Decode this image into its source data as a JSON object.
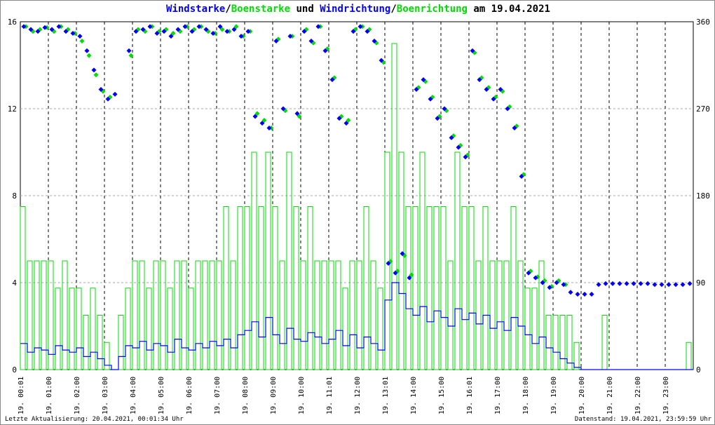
{
  "chart_data": {
    "type": "bar",
    "title_parts": [
      {
        "text": "Windstarke",
        "color": "#0000ff"
      },
      {
        "text": "/",
        "color": "#000000"
      },
      {
        "text": "Boenstarke",
        "color": "#00dd00"
      },
      {
        "text": " und ",
        "color": "#000000"
      },
      {
        "text": "Windrichtung",
        "color": "#0000ff"
      },
      {
        "text": "/",
        "color": "#000000"
      },
      {
        "text": "Boenrichtung",
        "color": "#00dd00"
      },
      {
        "text": " am 19.04.2021",
        "color": "#000000"
      }
    ],
    "y_left": {
      "range": [
        0,
        16
      ],
      "ticks": [
        "0",
        "4",
        "8",
        "12",
        "16"
      ]
    },
    "y_right": {
      "range": [
        0,
        360
      ],
      "ticks": [
        "0",
        "90",
        "180",
        "270",
        "360"
      ]
    },
    "x_ticks": [
      "19. 00:01",
      "19. 01:00",
      "19. 02:00",
      "19. 03:00",
      "19. 04:00",
      "19. 05:00",
      "19. 06:00",
      "19. 07:00",
      "19. 08:00",
      "19. 09:00",
      "19. 10:00",
      "19. 11:01",
      "19. 12:00",
      "19. 13:01",
      "19. 14:00",
      "19. 15:00",
      "19. 16:01",
      "19. 17:00",
      "19. 18:00",
      "19. 19:00",
      "19. 20:00",
      "19. 21:00",
      "19. 22:00",
      "19. 23:00"
    ],
    "x_range_hours": [
      0,
      24
    ],
    "interval_minutes": 15,
    "grid": true,
    "series": [
      {
        "name": "Windstarke",
        "color": "#0000ff",
        "values": [
          1.2,
          0.8,
          1.0,
          0.9,
          0.7,
          1.1,
          0.9,
          0.8,
          1.0,
          0.6,
          0.8,
          0.5,
          0.2,
          0,
          0.6,
          1.1,
          1.0,
          1.3,
          0.9,
          1.2,
          1.1,
          0.8,
          1.4,
          1.0,
          0.9,
          1.2,
          1.0,
          1.3,
          1.1,
          1.4,
          1.0,
          1.6,
          1.8,
          2.2,
          1.5,
          2.4,
          1.6,
          1.2,
          1.9,
          1.4,
          1.3,
          1.7,
          1.5,
          1.2,
          1.4,
          1.8,
          1.1,
          1.6,
          1.0,
          1.5,
          1.2,
          0.9,
          3.2,
          4.0,
          3.5,
          2.8,
          2.5,
          2.9,
          2.2,
          2.7,
          2.4,
          2.0,
          2.8,
          2.3,
          2.6,
          2.1,
          2.5,
          1.9,
          2.2,
          1.8,
          2.4,
          2.0,
          1.6,
          1.2,
          1.5,
          1.0,
          0.8,
          0.5,
          0.3,
          0.1,
          0,
          0,
          0,
          0,
          0,
          0,
          0,
          0,
          0,
          0,
          0,
          0,
          0,
          0,
          0,
          0
        ]
      },
      {
        "name": "Boenstarke",
        "color": "#00dd00",
        "values": [
          7.5,
          5,
          5,
          5,
          5,
          3.75,
          5,
          3.75,
          3.75,
          2.5,
          3.75,
          2.5,
          1.25,
          0,
          2.5,
          3.75,
          5,
          5,
          3.75,
          5,
          5,
          3.75,
          5,
          5,
          3.75,
          5,
          5,
          5,
          5,
          7.5,
          5,
          7.5,
          7.5,
          10,
          7.5,
          10,
          7.5,
          5,
          10,
          7.5,
          5,
          7.5,
          5,
          5,
          5,
          5,
          3.75,
          5,
          5,
          7.5,
          5,
          3.75,
          10,
          15,
          10,
          7.5,
          7.5,
          10,
          7.5,
          7.5,
          7.5,
          5,
          10,
          7.5,
          7.5,
          5,
          7.5,
          5,
          5,
          5,
          7.5,
          5,
          3.75,
          3.75,
          5,
          2.5,
          2.5,
          2.5,
          2.5,
          1.25,
          0,
          0,
          0,
          2.5,
          0,
          0,
          0,
          0,
          0,
          0,
          0,
          0,
          0,
          0,
          0,
          1.25
        ]
      },
      {
        "name": "Windrichtung",
        "color": "#0000ff",
        "values": [
          355,
          352,
          350,
          354,
          352,
          355,
          350,
          348,
          345,
          330,
          310,
          290,
          280,
          285,
          null,
          330,
          350,
          352,
          355,
          348,
          350,
          345,
          352,
          355,
          350,
          355,
          352,
          348,
          355,
          350,
          352,
          345,
          350,
          262,
          255,
          250,
          340,
          270,
          345,
          265,
          350,
          340,
          355,
          330,
          300,
          260,
          255,
          350,
          355,
          350,
          340,
          320,
          110,
          100,
          120,
          95,
          290,
          300,
          280,
          260,
          270,
          240,
          230,
          220,
          330,
          300,
          290,
          280,
          290,
          270,
          250,
          200,
          100,
          95,
          90,
          85,
          90,
          88,
          80,
          78,
          78,
          78,
          88,
          89,
          89,
          89,
          89,
          89,
          89,
          89,
          88,
          88,
          88,
          88,
          88,
          89
        ]
      },
      {
        "name": "Boenrichtung",
        "color": "#00dd00",
        "values": [
          355,
          350,
          352,
          354,
          350,
          355,
          352,
          348,
          340,
          325,
          305,
          288,
          282,
          null,
          null,
          325,
          352,
          350,
          355,
          350,
          352,
          348,
          350,
          355,
          352,
          355,
          350,
          348,
          352,
          350,
          355,
          345,
          350,
          265,
          258,
          250,
          342,
          268,
          345,
          262,
          352,
          338,
          355,
          332,
          302,
          262,
          258,
          352,
          355,
          352,
          338,
          318,
          112,
          102,
          118,
          98,
          292,
          298,
          282,
          262,
          268,
          242,
          232,
          222,
          328,
          302,
          292,
          282,
          288,
          272,
          252,
          202,
          102,
          96,
          92,
          86,
          92,
          88,
          null,
          null,
          null,
          null,
          null,
          null,
          null,
          null,
          null,
          null,
          null,
          null,
          null,
          null,
          null,
          null,
          null,
          null
        ]
      }
    ]
  },
  "footer": {
    "left": "Letzte Aktualisierung: 20.04.2021, 00:01:34 Uhr",
    "right": "Datenstand: 19.04.2021, 23:59:59 Uhr"
  }
}
